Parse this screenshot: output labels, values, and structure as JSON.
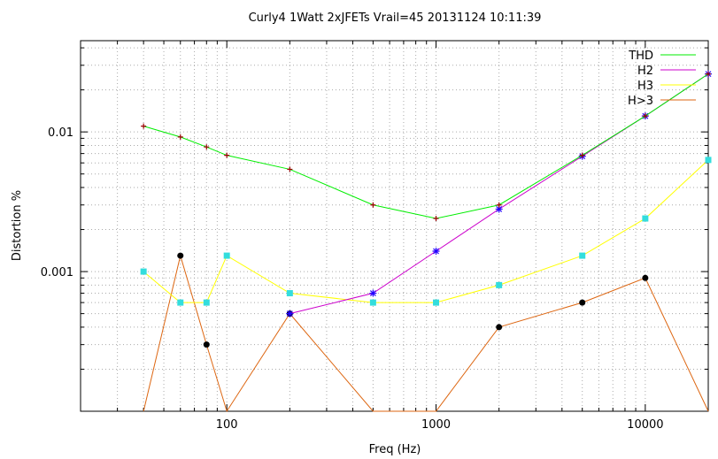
{
  "chart_data": {
    "type": "line",
    "title": "Curly4 1Watt 2xJFETs Vrail=45 20131124 10:11:39",
    "xlabel": "Freq (Hz)",
    "ylabel": "Distortion %",
    "xscale": "log",
    "yscale": "log",
    "xlim": [
      20,
      20000
    ],
    "ylim": [
      0.0001,
      0.045
    ],
    "grid": true,
    "legend": "top-right",
    "x_tick_labels": [
      {
        "value": 100,
        "label": "100"
      },
      {
        "value": 1000,
        "label": "1000"
      },
      {
        "value": 10000,
        "label": "10000"
      }
    ],
    "y_tick_labels": [
      {
        "value": 0.001,
        "label": "0.001"
      },
      {
        "value": 0.01,
        "label": "0.01"
      }
    ],
    "series": [
      {
        "name": "THD",
        "color": "#00ee00",
        "marker": "plus",
        "marker_color": "#990000",
        "x": [
          40,
          60,
          80,
          100,
          200,
          500,
          1000,
          2000,
          5000,
          10000,
          20000
        ],
        "y": [
          0.011,
          0.0092,
          0.0078,
          0.0068,
          0.0054,
          0.003,
          0.0024,
          0.003,
          0.0068,
          0.013,
          0.026
        ]
      },
      {
        "name": "H2",
        "color": "#cc00cc",
        "marker": "star",
        "marker_color": "#2200ff",
        "x": [
          200,
          500,
          1000,
          2000,
          5000,
          10000,
          20000
        ],
        "y": [
          0.0005,
          0.0007,
          0.0014,
          0.0028,
          0.0067,
          0.013,
          0.026
        ]
      },
      {
        "name": "H3",
        "color": "#ffff00",
        "marker": "square",
        "marker_color": "#33dddd",
        "x": [
          40,
          60,
          80,
          100,
          200,
          500,
          1000,
          2000,
          5000,
          10000,
          20000
        ],
        "y": [
          0.001,
          0.0006,
          0.0006,
          0.0013,
          0.0007,
          0.0006,
          0.0006,
          0.0008,
          0.0013,
          0.0024,
          0.0063
        ]
      },
      {
        "name": "H>3",
        "color": "#dd6611",
        "marker": "circle",
        "marker_color": "#000000",
        "x": [
          40,
          60,
          80,
          100,
          200,
          500,
          1000,
          2000,
          5000,
          10000,
          20000
        ],
        "y": [
          0,
          0.0013,
          0.0003,
          0,
          0.0005,
          0,
          0.0001,
          0.0004,
          0.0006,
          0.0009,
          0
        ]
      }
    ]
  }
}
